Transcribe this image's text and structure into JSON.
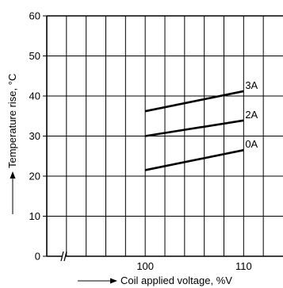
{
  "chart_data": {
    "type": "line",
    "title": "",
    "xlabel": "Coil applied voltage, %V",
    "ylabel": "Temperature rise, °C",
    "xlim": [
      90,
      114
    ],
    "ylim": [
      0,
      60
    ],
    "x_axis_break": true,
    "grid": true,
    "x_tick_labels": [
      "100",
      "110"
    ],
    "y_tick_labels": [
      "0",
      "10",
      "20",
      "30",
      "40",
      "50",
      "60"
    ],
    "series": [
      {
        "name": "3A",
        "x": [
          100,
          110
        ],
        "y": [
          36.2,
          41.2
        ]
      },
      {
        "name": "2A",
        "x": [
          100,
          110
        ],
        "y": [
          30.0,
          33.9
        ]
      },
      {
        "name": "0A",
        "x": [
          100,
          110
        ],
        "y": [
          21.5,
          26.5
        ]
      }
    ]
  }
}
